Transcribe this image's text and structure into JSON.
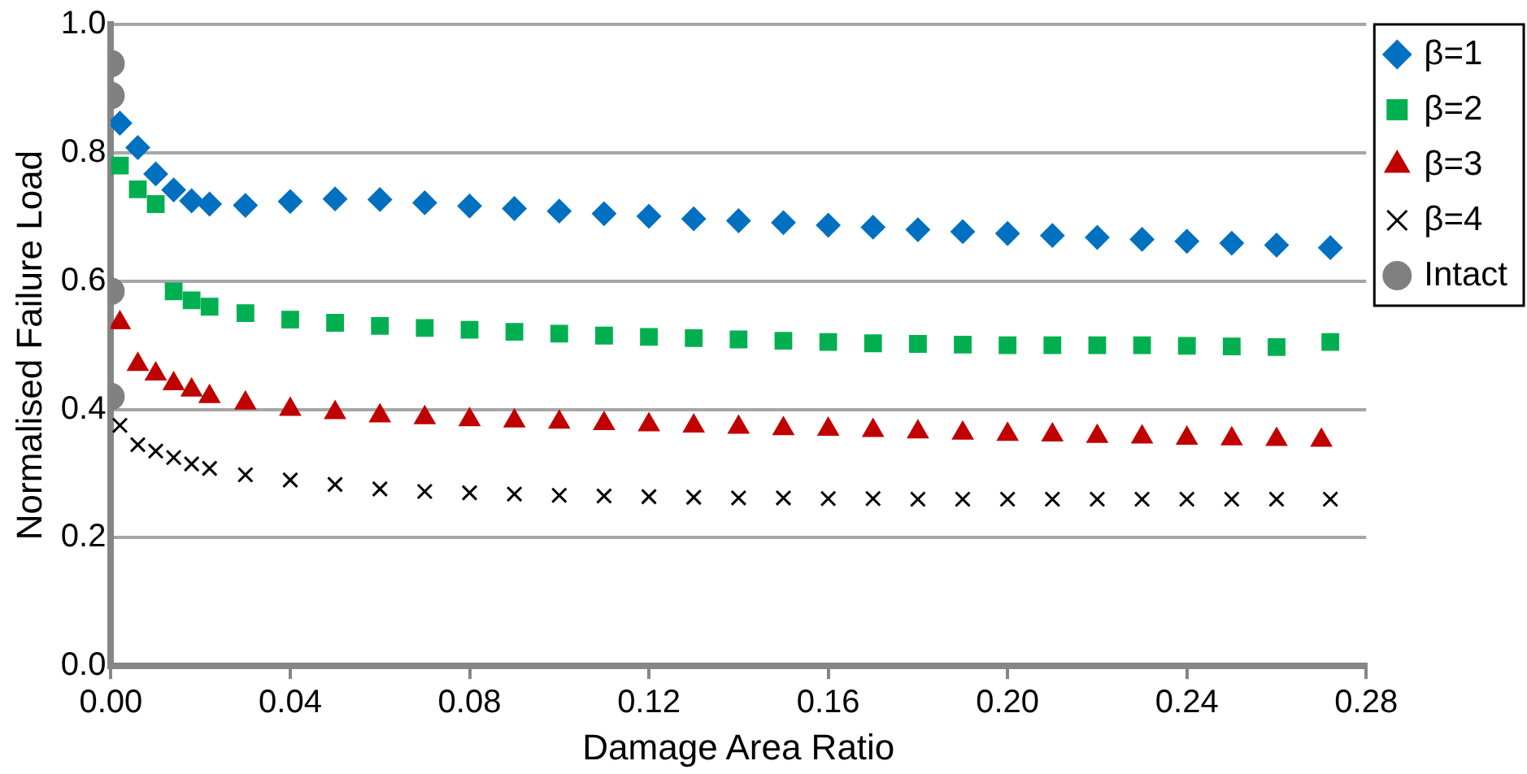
{
  "chart_data": {
    "type": "scatter",
    "xlabel": "Damage Area Ratio",
    "ylabel": "Normalised Failure Load",
    "xlim": [
      0,
      0.28
    ],
    "xticks": [
      {
        "value": 0,
        "label": "0.00"
      },
      {
        "value": 0.04,
        "label": "0.04"
      },
      {
        "value": 0.08,
        "label": "0.08"
      },
      {
        "value": 0.12,
        "label": "0.12"
      },
      {
        "value": 0.16,
        "label": "0.16"
      },
      {
        "value": 0.2,
        "label": "0.20"
      },
      {
        "value": 0.24,
        "label": "0.24"
      },
      {
        "value": 0.28,
        "label": "0.28"
      }
    ],
    "ylim": [
      0,
      1
    ],
    "yticks": [
      {
        "value": 0,
        "label": "0.0"
      },
      {
        "value": 0.2,
        "label": "0.2"
      },
      {
        "value": 0.4,
        "label": "0.4"
      },
      {
        "value": 0.6,
        "label": "0.6"
      },
      {
        "value": 0.8,
        "label": "0.8"
      },
      {
        "value": 1,
        "label": "1.0"
      }
    ],
    "grid": "y",
    "legend": "right",
    "series": [
      {
        "name": "β=1",
        "color": "#0070c0",
        "marker": "diamond",
        "x": [
          0.002,
          0.006,
          0.01,
          0.014,
          0.018,
          0.022,
          0.03,
          0.04,
          0.05,
          0.06,
          0.07,
          0.08,
          0.09,
          0.1,
          0.11,
          0.12,
          0.13,
          0.14,
          0.15,
          0.16,
          0.17,
          0.18,
          0.19,
          0.2,
          0.21,
          0.22,
          0.23,
          0.24,
          0.25,
          0.26,
          0.272
        ],
        "values": [
          0.846,
          0.808,
          0.767,
          0.742,
          0.725,
          0.72,
          0.718,
          0.724,
          0.728,
          0.727,
          0.722,
          0.717,
          0.713,
          0.709,
          0.705,
          0.701,
          0.697,
          0.694,
          0.691,
          0.687,
          0.684,
          0.68,
          0.677,
          0.674,
          0.671,
          0.668,
          0.665,
          0.662,
          0.659,
          0.656,
          0.652
        ]
      },
      {
        "name": "β=2",
        "color": "#00b050",
        "marker": "square",
        "x": [
          0.002,
          0.006,
          0.01,
          0.014,
          0.018,
          0.022,
          0.03,
          0.04,
          0.05,
          0.06,
          0.07,
          0.08,
          0.09,
          0.1,
          0.11,
          0.12,
          0.13,
          0.14,
          0.15,
          0.16,
          0.17,
          0.18,
          0.19,
          0.2,
          0.21,
          0.22,
          0.23,
          0.24,
          0.25,
          0.26,
          0.272
        ],
        "values": [
          0.78,
          0.743,
          0.72,
          0.584,
          0.57,
          0.56,
          0.55,
          0.54,
          0.535,
          0.53,
          0.527,
          0.524,
          0.521,
          0.518,
          0.515,
          0.513,
          0.511,
          0.509,
          0.507,
          0.505,
          0.503,
          0.502,
          0.501,
          0.5,
          0.5,
          0.5,
          0.5,
          0.499,
          0.498,
          0.497,
          0.505
        ]
      },
      {
        "name": "β=3",
        "color": "#c00000",
        "marker": "triangle",
        "x": [
          0.002,
          0.006,
          0.01,
          0.014,
          0.018,
          0.022,
          0.03,
          0.04,
          0.05,
          0.06,
          0.07,
          0.08,
          0.09,
          0.1,
          0.11,
          0.12,
          0.13,
          0.14,
          0.15,
          0.16,
          0.17,
          0.18,
          0.19,
          0.2,
          0.21,
          0.22,
          0.23,
          0.24,
          0.25,
          0.26,
          0.27
        ],
        "values": [
          0.535,
          0.47,
          0.455,
          0.44,
          0.43,
          0.42,
          0.41,
          0.4,
          0.395,
          0.39,
          0.387,
          0.384,
          0.382,
          0.38,
          0.378,
          0.376,
          0.374,
          0.372,
          0.37,
          0.369,
          0.367,
          0.365,
          0.363,
          0.361,
          0.36,
          0.358,
          0.357,
          0.355,
          0.354,
          0.353,
          0.352
        ]
      },
      {
        "name": "β=4",
        "color": "#000000",
        "marker": "cross",
        "x": [
          0.002,
          0.006,
          0.01,
          0.014,
          0.018,
          0.022,
          0.03,
          0.04,
          0.05,
          0.06,
          0.07,
          0.08,
          0.09,
          0.1,
          0.11,
          0.12,
          0.13,
          0.14,
          0.15,
          0.16,
          0.17,
          0.18,
          0.19,
          0.2,
          0.21,
          0.22,
          0.23,
          0.24,
          0.25,
          0.26,
          0.272
        ],
        "values": [
          0.375,
          0.345,
          0.335,
          0.325,
          0.315,
          0.308,
          0.298,
          0.29,
          0.283,
          0.276,
          0.272,
          0.27,
          0.268,
          0.266,
          0.265,
          0.264,
          0.263,
          0.262,
          0.262,
          0.261,
          0.261,
          0.26,
          0.26,
          0.26,
          0.26,
          0.26,
          0.26,
          0.26,
          0.26,
          0.26,
          0.26
        ]
      },
      {
        "name": "Intact",
        "color": "#808080",
        "marker": "circle",
        "x": [
          0,
          0,
          0,
          0
        ],
        "values": [
          0.939,
          0.889,
          0.584,
          0.42
        ]
      }
    ]
  }
}
